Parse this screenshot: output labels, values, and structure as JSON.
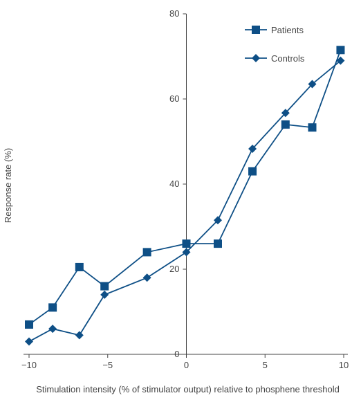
{
  "chart_data": {
    "type": "line",
    "xlabel": "Stimulation intensity (% of stimulator output) relative to phosphene threshold",
    "ylabel": "Response rate (%)",
    "xlim": [
      -10,
      10
    ],
    "ylim": [
      0,
      80
    ],
    "xticks": [
      -10,
      -5,
      0,
      5,
      10
    ],
    "xtick_labels": [
      "−10",
      "−5",
      "0",
      "5",
      "10"
    ],
    "yticks": [
      0,
      20,
      40,
      60,
      80
    ],
    "ytick_labels": [
      "0",
      "20",
      "40",
      "60",
      "80"
    ],
    "grid": false,
    "legend_position": "top-right",
    "color": "#0e4f86",
    "series": [
      {
        "name": "Patients",
        "marker": "square",
        "x": [
          -10,
          -8.5,
          -6.8,
          -5.2,
          -2.5,
          0,
          2,
          4.2,
          6.3,
          8,
          9.8
        ],
        "y": [
          7,
          11,
          20.5,
          16,
          24,
          26,
          26,
          43,
          54,
          53.3,
          71.5
        ]
      },
      {
        "name": "Controls",
        "marker": "diamond",
        "x": [
          -10,
          -8.5,
          -6.8,
          -5.2,
          -2.5,
          0,
          2,
          4.2,
          6.3,
          8,
          9.8
        ],
        "y": [
          3,
          6,
          4.5,
          14,
          18,
          24,
          31.5,
          48.3,
          56.7,
          63.5,
          69
        ]
      }
    ]
  }
}
